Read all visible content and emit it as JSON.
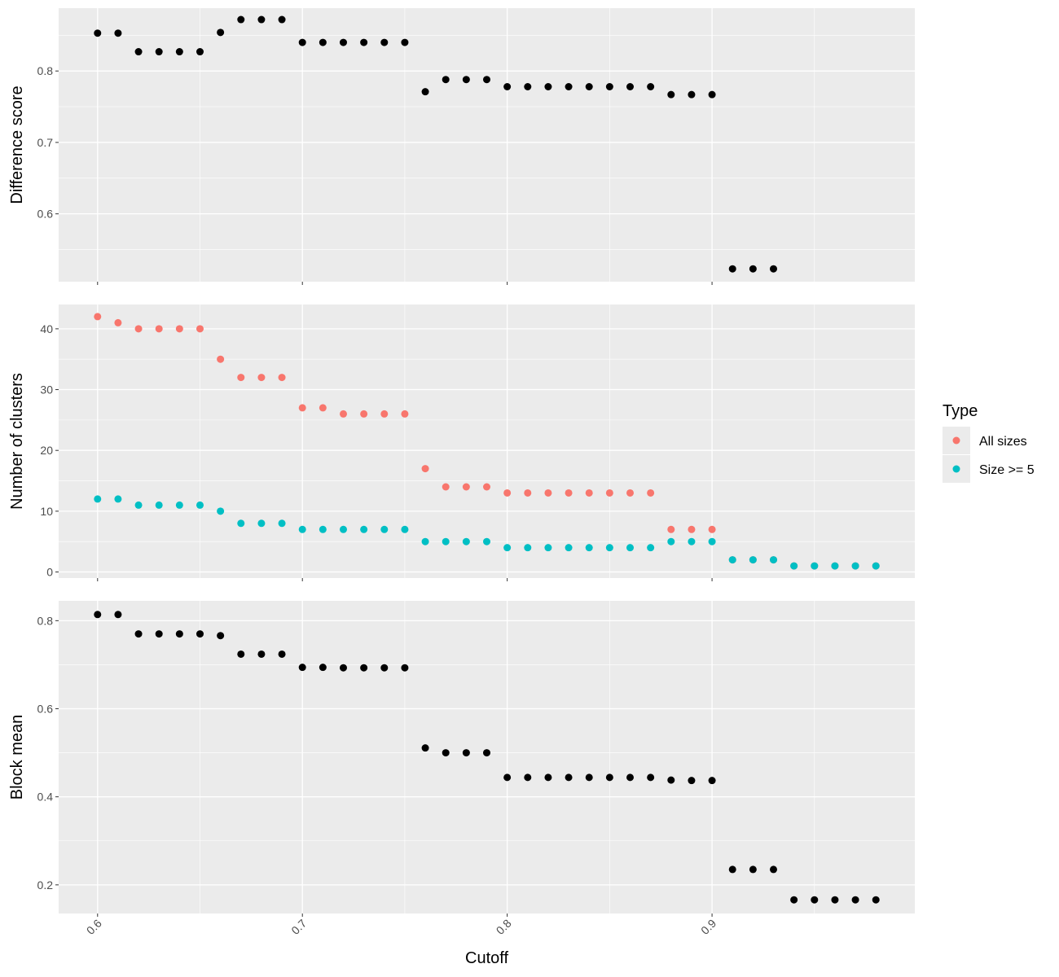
{
  "colors": {
    "panel_bg": "#EBEBEB",
    "grid_major": "#FFFFFF",
    "point_default": "#000000",
    "all_sizes": "#F8766D",
    "size_ge_5": "#00BFC4"
  },
  "chart_data": {
    "type": "scatter",
    "layout": "three vertically stacked panels sharing x axis",
    "x_axis": {
      "label": "Cutoff",
      "ticks": [
        0.6,
        0.7,
        0.8,
        0.9
      ],
      "tick_labels": [
        "0.6",
        "0.7",
        "0.8",
        "0.9"
      ],
      "range": [
        0.581,
        0.999
      ],
      "tick_label_rotation": "45 degrees"
    },
    "legend": {
      "title": "Type",
      "position": "right",
      "items": [
        {
          "label": "All sizes",
          "color": "#F8766D"
        },
        {
          "label": "Size >= 5",
          "color": "#00BFC4"
        }
      ]
    },
    "panels": [
      {
        "ylabel": "Difference score",
        "ylim": [
          0.505,
          0.888
        ],
        "y_ticks": [
          0.6,
          0.7,
          0.8
        ],
        "y_tick_labels": [
          "0.6",
          "0.7",
          "0.8"
        ],
        "series": [
          {
            "x": [
              0.6,
              0.61,
              0.62,
              0.63,
              0.64,
              0.65,
              0.66,
              0.67,
              0.68,
              0.69,
              0.7,
              0.71,
              0.72,
              0.73,
              0.74,
              0.75,
              0.76,
              0.77,
              0.78,
              0.79,
              0.8,
              0.81,
              0.82,
              0.83,
              0.84,
              0.85,
              0.86,
              0.87,
              0.88,
              0.89,
              0.9,
              0.91,
              0.92,
              0.93
            ],
            "y": [
              0.853,
              0.853,
              0.827,
              0.827,
              0.827,
              0.827,
              0.854,
              0.872,
              0.872,
              0.872,
              0.84,
              0.84,
              0.84,
              0.84,
              0.84,
              0.84,
              0.771,
              0.788,
              0.788,
              0.788,
              0.778,
              0.778,
              0.778,
              0.778,
              0.778,
              0.778,
              0.778,
              0.778,
              0.767,
              0.767,
              0.767,
              0.523,
              0.523,
              0.523
            ]
          }
        ]
      },
      {
        "ylabel": "Number of clusters",
        "ylim": [
          -1,
          44
        ],
        "y_ticks": [
          0,
          10,
          20,
          30,
          40
        ],
        "y_tick_labels": [
          "0",
          "10",
          "20",
          "30",
          "40"
        ],
        "series": [
          {
            "name": "All sizes",
            "x": [
              0.6,
              0.61,
              0.62,
              0.63,
              0.64,
              0.65,
              0.66,
              0.67,
              0.68,
              0.69,
              0.7,
              0.71,
              0.72,
              0.73,
              0.74,
              0.75,
              0.76,
              0.77,
              0.78,
              0.79,
              0.8,
              0.81,
              0.82,
              0.83,
              0.84,
              0.85,
              0.86,
              0.87,
              0.88,
              0.89,
              0.9,
              0.91,
              0.92,
              0.93,
              0.94,
              0.95,
              0.96,
              0.97,
              0.98
            ],
            "y": [
              42,
              41,
              40,
              40,
              40,
              40,
              35,
              32,
              32,
              32,
              27,
              27,
              26,
              26,
              26,
              26,
              17,
              14,
              14,
              14,
              13,
              13,
              13,
              13,
              13,
              13,
              13,
              13,
              7,
              7,
              7,
              2,
              2,
              2,
              1,
              1,
              1,
              1,
              1
            ]
          },
          {
            "name": "Size >= 5",
            "x": [
              0.6,
              0.61,
              0.62,
              0.63,
              0.64,
              0.65,
              0.66,
              0.67,
              0.68,
              0.69,
              0.7,
              0.71,
              0.72,
              0.73,
              0.74,
              0.75,
              0.76,
              0.77,
              0.78,
              0.79,
              0.8,
              0.81,
              0.82,
              0.83,
              0.84,
              0.85,
              0.86,
              0.87,
              0.88,
              0.89,
              0.9,
              0.91,
              0.92,
              0.93,
              0.94,
              0.95,
              0.96,
              0.97,
              0.98
            ],
            "y": [
              12,
              12,
              11,
              11,
              11,
              11,
              10,
              8,
              8,
              8,
              7,
              7,
              7,
              7,
              7,
              7,
              5,
              5,
              5,
              5,
              4,
              4,
              4,
              4,
              4,
              4,
              4,
              4,
              5,
              5,
              5,
              2,
              2,
              2,
              1,
              1,
              1,
              1,
              1
            ]
          }
        ]
      },
      {
        "ylabel": "Block mean",
        "ylim": [
          0.135,
          0.845
        ],
        "y_ticks": [
          0.2,
          0.4,
          0.6,
          0.8
        ],
        "y_tick_labels": [
          "0.2",
          "0.4",
          "0.6",
          "0.8"
        ],
        "series": [
          {
            "x": [
              0.6,
              0.61,
              0.62,
              0.63,
              0.64,
              0.65,
              0.66,
              0.67,
              0.68,
              0.69,
              0.7,
              0.71,
              0.72,
              0.73,
              0.74,
              0.75,
              0.76,
              0.77,
              0.78,
              0.79,
              0.8,
              0.81,
              0.82,
              0.83,
              0.84,
              0.85,
              0.86,
              0.87,
              0.88,
              0.89,
              0.9,
              0.91,
              0.92,
              0.93,
              0.94,
              0.95,
              0.96,
              0.97,
              0.98
            ],
            "y": [
              0.814,
              0.814,
              0.77,
              0.77,
              0.77,
              0.77,
              0.766,
              0.724,
              0.724,
              0.724,
              0.694,
              0.694,
              0.693,
              0.693,
              0.693,
              0.693,
              0.511,
              0.5,
              0.5,
              0.5,
              0.444,
              0.444,
              0.444,
              0.444,
              0.444,
              0.444,
              0.444,
              0.444,
              0.438,
              0.437,
              0.437,
              0.235,
              0.235,
              0.235,
              0.166,
              0.166,
              0.166,
              0.166,
              0.166
            ]
          }
        ]
      }
    ]
  }
}
